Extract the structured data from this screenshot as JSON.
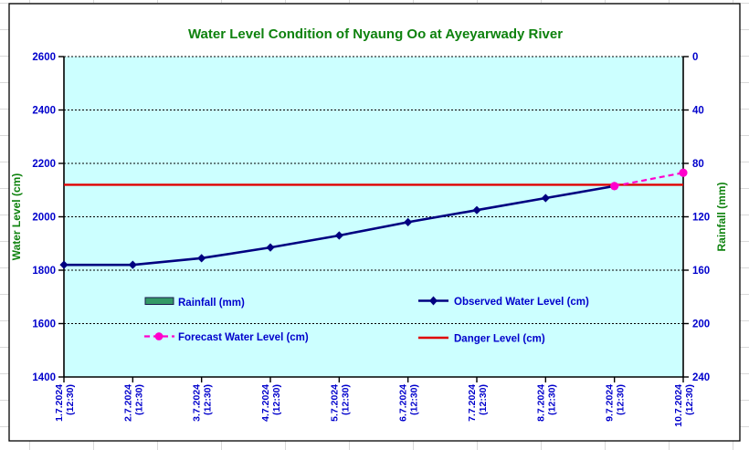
{
  "title": "Water Level Condition of Nyaung Oo at Ayeyarwady River",
  "colors": {
    "sheet_grid": "#d9d9d9",
    "chart_border": "#000000",
    "plot_bg": "#ccffff",
    "gridline": "#000000",
    "title_green": "#0e820e",
    "axis_label_green": "#0e820e",
    "tick_blue": "#0000cc",
    "observed_navy": "#000080",
    "forecast_magenta": "#ff00cc",
    "danger_red": "#e00000",
    "rainfall_green": "#339966",
    "rainfall_border": "#1a1a4e"
  },
  "chart_data": {
    "type": "line",
    "title": "Water Level Condition of Nyaung Oo at Ayeyarwady River",
    "x": [
      "1.7.2024",
      "2.7.2024",
      "3.7.2024",
      "4.7.2024",
      "5.7.2024",
      "6.7.2024",
      "7.7.2024",
      "8.7.2024",
      "9.7.2024",
      "10.7.2024"
    ],
    "x_time": "(12:30)",
    "left_axis": {
      "label": "Water Level (cm)",
      "min": 1400,
      "max": 2600,
      "step": 200
    },
    "right_axis": {
      "label": "Rainfall (mm)",
      "min": 0,
      "max": 240,
      "step": 40,
      "inverted_downward": true
    },
    "grid": "horizontal-dashed",
    "legend_position": "inside-plot",
    "series": [
      {
        "name": "Rainfall (mm)",
        "type": "bar",
        "axis": "right",
        "values": [
          0,
          0,
          0,
          0,
          0,
          0,
          0,
          0,
          0,
          0
        ]
      },
      {
        "name": "Observed Water Level (cm)",
        "type": "line",
        "axis": "left",
        "values": [
          1820,
          1820,
          1845,
          1885,
          1930,
          1980,
          2025,
          2070,
          2115,
          null
        ]
      },
      {
        "name": "Forecast Water Level (cm)",
        "type": "line-dashed",
        "axis": "left",
        "values": [
          null,
          null,
          null,
          null,
          null,
          null,
          null,
          null,
          2115,
          2165
        ]
      },
      {
        "name": "Danger Level (cm)",
        "type": "hline",
        "axis": "left",
        "value": 2120
      }
    ],
    "legend": {
      "rainfall": "Rainfall (mm)",
      "observed": "Observed Water Level (cm)",
      "forecast": "Forecast Water Level (cm)",
      "danger": "Danger Level (cm)"
    }
  }
}
